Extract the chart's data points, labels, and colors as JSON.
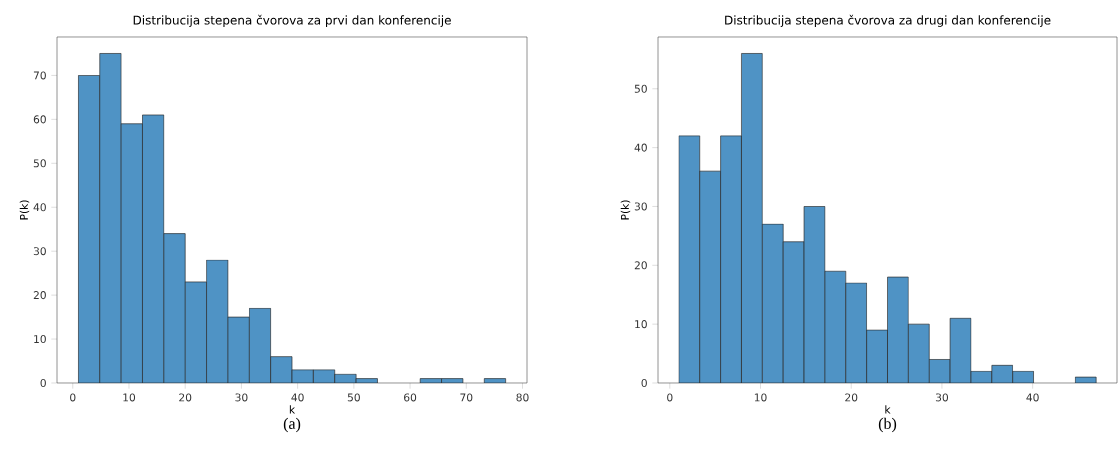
{
  "chart_data": [
    {
      "type": "histogram",
      "title": "Distribucija stepena čvorova za prvi dan konferencije",
      "xlabel": "k",
      "ylabel": "P(k)",
      "color": "#4f93c5",
      "bins": [
        1,
        4.8,
        8.6,
        12.4,
        16.2,
        20,
        23.8,
        27.6,
        31.4,
        35.2,
        39,
        42.8,
        46.6,
        50.4,
        54.2,
        58,
        61.8,
        65.6,
        69.4,
        73.2,
        77
      ],
      "values": [
        70,
        75,
        59,
        61,
        34,
        23,
        28,
        15,
        17,
        6,
        3,
        3,
        2,
        1,
        0,
        0,
        1,
        1,
        0,
        1
      ],
      "xlim": [
        -2.8,
        80.8
      ],
      "ylim": [
        0,
        78.75
      ],
      "xticks": [
        0,
        10,
        20,
        30,
        40,
        50,
        60,
        70,
        80
      ],
      "yticks": [
        0,
        10,
        20,
        30,
        40,
        50,
        60,
        70
      ],
      "annotations": [
        "(a)"
      ]
    },
    {
      "type": "histogram",
      "title": "Distribucija stepena čvorova za drugi dan konferencije",
      "xlabel": "k",
      "ylabel": "P(k)",
      "color": "#4f93c5",
      "bins": [
        1,
        3.3,
        5.6,
        7.9,
        10.2,
        12.5,
        14.8,
        17.1,
        19.4,
        21.7,
        24,
        26.3,
        28.6,
        30.9,
        33.2,
        35.5,
        37.8,
        40.1,
        42.4,
        44.7,
        47
      ],
      "values": [
        42,
        36,
        42,
        56,
        27,
        24,
        30,
        19,
        17,
        9,
        18,
        10,
        4,
        11,
        2,
        3,
        2,
        0,
        0,
        1
      ],
      "xlim": [
        -1.3,
        49.3
      ],
      "ylim": [
        0,
        58.8
      ],
      "xticks": [
        0,
        10,
        20,
        30,
        40
      ],
      "yticks": [
        0,
        10,
        20,
        30,
        40,
        50
      ],
      "annotations": [
        "(b)"
      ]
    }
  ]
}
